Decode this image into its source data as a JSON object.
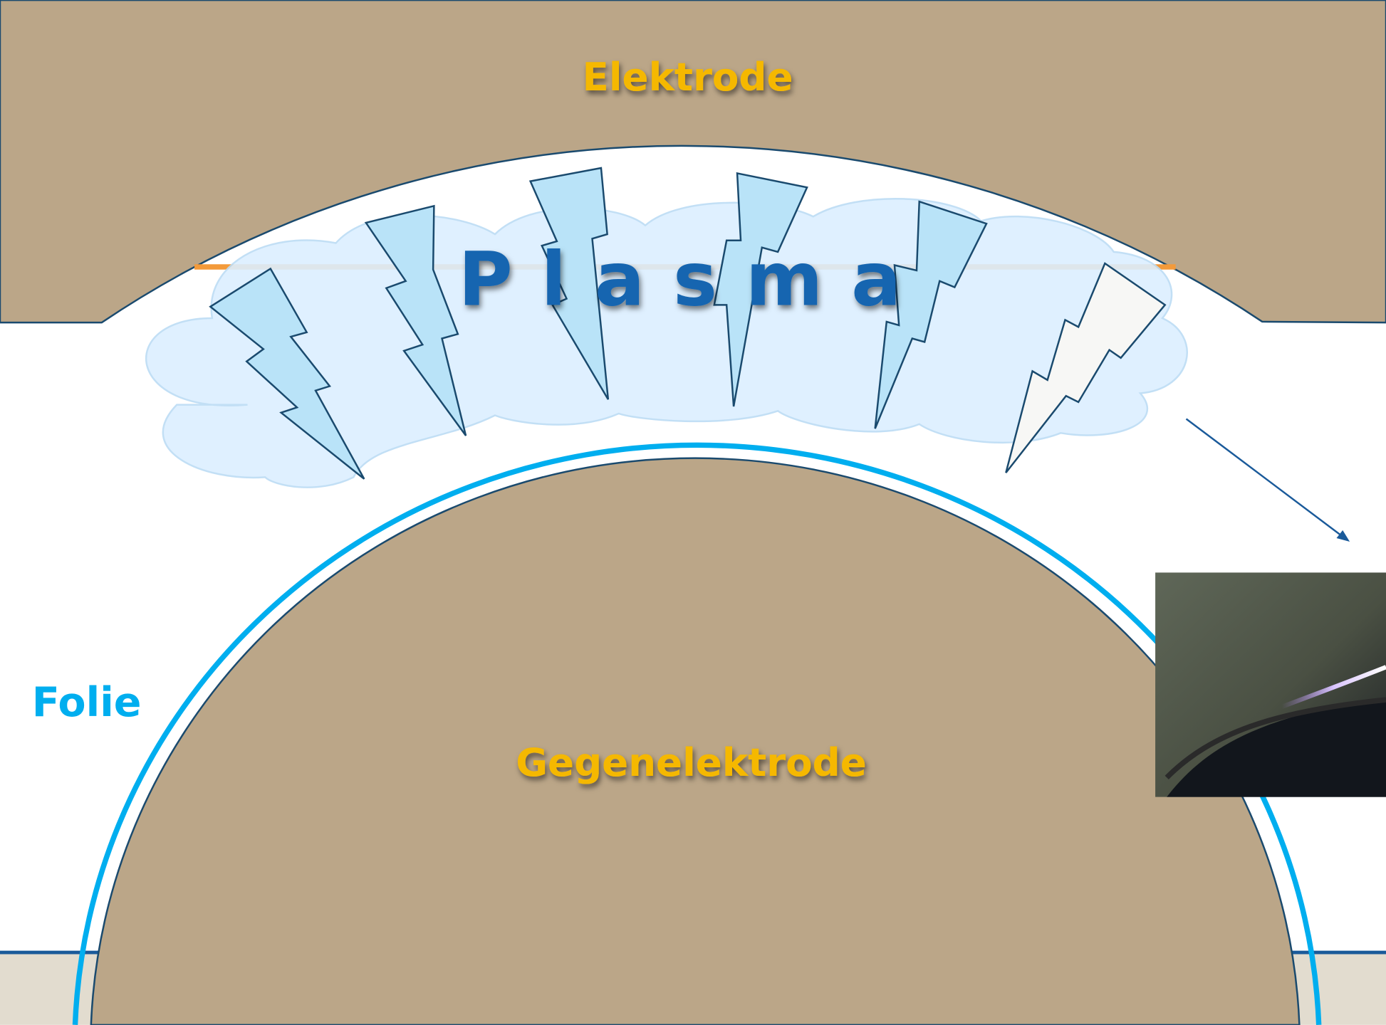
{
  "labels": {
    "electrode": "Elektrode",
    "plasma": "Plasma",
    "foil": "Folie",
    "counter_electrode": "Gegenelektrode"
  }
}
